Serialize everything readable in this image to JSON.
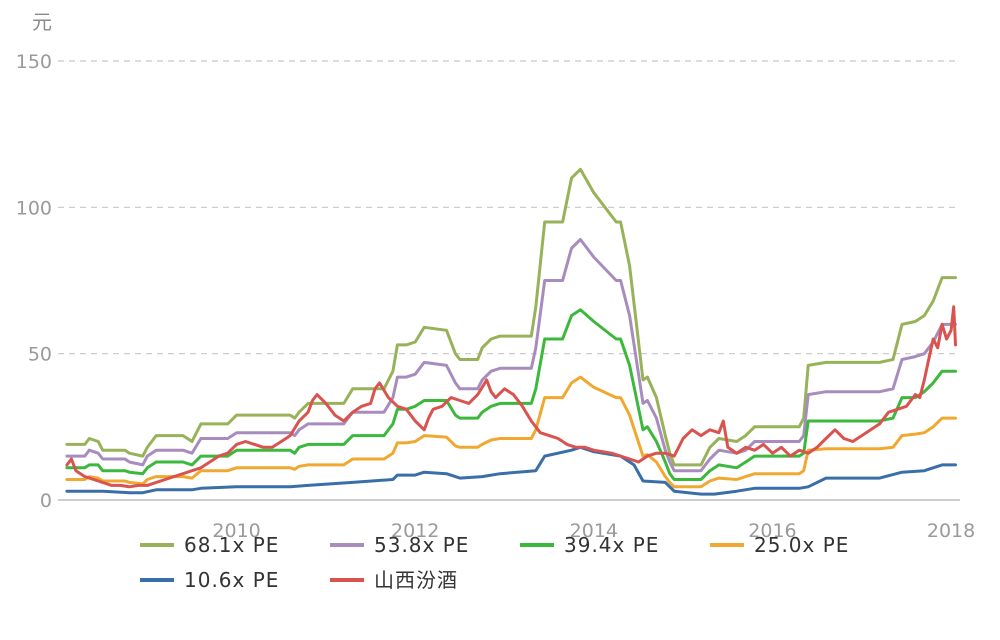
{
  "chart_data": {
    "type": "line",
    "title": "",
    "xlabel": "",
    "ylabel": "元",
    "xlim": [
      2008.0,
      2018.1
    ],
    "ylim": [
      0,
      150
    ],
    "yticks": [
      0,
      50,
      100,
      150
    ],
    "xticks": [
      2010,
      2012,
      2014,
      2016,
      2018
    ],
    "grid": "horizontal dashed",
    "legend_position": "bottom",
    "series": [
      {
        "name": "68.1x PE",
        "color": "#98b25a",
        "x": [
          2008.1,
          2008.3,
          2008.35,
          2008.45,
          2008.5,
          2008.75,
          2008.8,
          2008.95,
          2009.0,
          2009.1,
          2009.4,
          2009.5,
          2009.6,
          2009.9,
          2010.0,
          2010.6,
          2010.65,
          2010.7,
          2010.8,
          2011.2,
          2011.3,
          2011.65,
          2011.75,
          2011.8,
          2011.9,
          2012.0,
          2012.1,
          2012.35,
          2012.45,
          2012.5,
          2012.7,
          2012.75,
          2012.85,
          2012.95,
          2013.3,
          2013.35,
          2013.45,
          2013.55,
          2013.65,
          2013.75,
          2013.85,
          2014.0,
          2014.25,
          2014.3,
          2014.4,
          2014.55,
          2014.6,
          2014.7,
          2014.8,
          2014.85,
          2014.9,
          2015.2,
          2015.3,
          2015.4,
          2015.6,
          2015.7,
          2015.8,
          2015.9,
          2016.3,
          2016.35,
          2016.4,
          2016.6,
          2016.7,
          2017.2,
          2017.35,
          2017.45,
          2017.6,
          2017.7,
          2017.8,
          2017.9,
          2018.05
        ],
        "y": [
          19,
          19,
          21,
          20,
          17,
          17,
          16,
          15,
          18,
          22,
          22,
          20,
          26,
          26,
          29,
          29,
          28,
          30,
          33,
          33,
          38,
          38,
          44,
          53,
          53,
          54,
          59,
          58,
          50,
          48,
          48,
          52,
          55,
          56,
          56,
          66,
          95,
          95,
          95,
          110,
          113,
          105,
          95,
          95,
          80,
          41,
          42,
          35,
          22,
          16,
          12,
          12,
          18,
          21,
          20,
          22,
          25,
          25,
          25,
          28,
          46,
          47,
          47,
          47,
          48,
          60,
          61,
          63,
          68,
          76,
          76
        ]
      },
      {
        "name": "53.8x PE",
        "color": "#a88cbe",
        "x": [
          2008.1,
          2008.3,
          2008.35,
          2008.45,
          2008.5,
          2008.75,
          2008.8,
          2008.95,
          2009.0,
          2009.1,
          2009.4,
          2009.5,
          2009.6,
          2009.9,
          2010.0,
          2010.6,
          2010.65,
          2010.7,
          2010.8,
          2011.2,
          2011.3,
          2011.65,
          2011.75,
          2011.8,
          2011.9,
          2012.0,
          2012.1,
          2012.35,
          2012.45,
          2012.5,
          2012.7,
          2012.75,
          2012.85,
          2012.95,
          2013.3,
          2013.35,
          2013.45,
          2013.55,
          2013.65,
          2013.75,
          2013.85,
          2014.0,
          2014.25,
          2014.3,
          2014.4,
          2014.55,
          2014.6,
          2014.7,
          2014.8,
          2014.85,
          2014.9,
          2015.2,
          2015.3,
          2015.4,
          2015.6,
          2015.7,
          2015.8,
          2015.9,
          2016.3,
          2016.35,
          2016.4,
          2016.6,
          2016.7,
          2017.2,
          2017.35,
          2017.45,
          2017.6,
          2017.7,
          2017.8,
          2017.9,
          2018.05
        ],
        "y": [
          15,
          15,
          17,
          16,
          14,
          14,
          13,
          12,
          15,
          17,
          17,
          16,
          21,
          21,
          23,
          23,
          22,
          24,
          26,
          26,
          30,
          30,
          35,
          42,
          42,
          43,
          47,
          46,
          40,
          38,
          38,
          41,
          44,
          45,
          45,
          52,
          75,
          75,
          75,
          86,
          89,
          83,
          75,
          75,
          63,
          33,
          34,
          28,
          17,
          13,
          10,
          10,
          14,
          17,
          16,
          17,
          20,
          20,
          20,
          22,
          36,
          37,
          37,
          37,
          38,
          48,
          49,
          50,
          54,
          60,
          60
        ]
      },
      {
        "name": "39.4x PE",
        "color": "#3cb83c",
        "x": [
          2008.1,
          2008.3,
          2008.35,
          2008.45,
          2008.5,
          2008.75,
          2008.8,
          2008.95,
          2009.0,
          2009.1,
          2009.4,
          2009.5,
          2009.6,
          2009.9,
          2010.0,
          2010.6,
          2010.65,
          2010.7,
          2010.8,
          2011.2,
          2011.3,
          2011.65,
          2011.75,
          2011.8,
          2011.9,
          2012.0,
          2012.1,
          2012.35,
          2012.45,
          2012.5,
          2012.7,
          2012.75,
          2012.85,
          2012.95,
          2013.3,
          2013.35,
          2013.45,
          2013.55,
          2013.65,
          2013.75,
          2013.85,
          2014.0,
          2014.25,
          2014.3,
          2014.4,
          2014.55,
          2014.6,
          2014.7,
          2014.8,
          2014.85,
          2014.9,
          2015.2,
          2015.3,
          2015.4,
          2015.6,
          2015.7,
          2015.8,
          2015.9,
          2016.3,
          2016.35,
          2016.4,
          2016.6,
          2016.7,
          2017.2,
          2017.35,
          2017.45,
          2017.6,
          2017.7,
          2017.8,
          2017.9,
          2018.05
        ],
        "y": [
          11,
          11,
          12,
          12,
          10,
          10,
          9.5,
          9,
          11,
          13,
          13,
          12,
          15,
          15,
          17,
          17,
          16,
          18,
          19,
          19,
          22,
          22,
          26,
          31,
          31,
          32,
          34,
          34,
          29,
          28,
          28,
          30,
          32,
          33,
          33,
          38,
          55,
          55,
          55,
          63,
          65,
          61,
          55,
          55,
          46,
          24,
          25,
          20,
          13,
          9,
          7,
          7,
          10,
          12,
          11,
          13,
          15,
          15,
          15,
          16,
          27,
          27,
          27,
          27,
          28,
          35,
          35,
          37,
          40,
          44,
          44
        ]
      },
      {
        "name": "25.0x PE",
        "color": "#f0a830",
        "x": [
          2008.1,
          2008.3,
          2008.35,
          2008.45,
          2008.5,
          2008.75,
          2008.8,
          2008.95,
          2009.0,
          2009.1,
          2009.4,
          2009.5,
          2009.6,
          2009.9,
          2010.0,
          2010.6,
          2010.65,
          2010.7,
          2010.8,
          2011.2,
          2011.3,
          2011.65,
          2011.75,
          2011.8,
          2011.9,
          2012.0,
          2012.1,
          2012.35,
          2012.45,
          2012.5,
          2012.7,
          2012.75,
          2012.85,
          2012.95,
          2013.3,
          2013.35,
          2013.45,
          2013.55,
          2013.65,
          2013.75,
          2013.85,
          2014.0,
          2014.25,
          2014.3,
          2014.4,
          2014.55,
          2014.6,
          2014.7,
          2014.8,
          2014.85,
          2014.9,
          2015.2,
          2015.3,
          2015.4,
          2015.6,
          2015.7,
          2015.8,
          2015.9,
          2016.3,
          2016.35,
          2016.4,
          2016.6,
          2016.7,
          2017.2,
          2017.35,
          2017.45,
          2017.6,
          2017.7,
          2017.8,
          2017.9,
          2018.05
        ],
        "y": [
          7,
          7,
          8,
          7.5,
          6.5,
          6.5,
          6,
          5.5,
          7,
          8,
          8,
          7.5,
          10,
          10,
          11,
          11,
          10.5,
          11.5,
          12,
          12,
          14,
          14,
          16,
          19.5,
          19.5,
          20,
          22,
          21.5,
          18.5,
          18,
          18,
          19,
          20.5,
          21,
          21,
          24,
          35,
          35,
          35,
          40,
          42,
          38.5,
          35,
          35,
          29,
          15,
          15.5,
          13,
          8,
          6,
          4.5,
          4.5,
          6.5,
          7.5,
          7,
          8,
          9,
          9,
          9,
          10,
          17,
          17.5,
          17.5,
          17.5,
          18,
          22,
          22.5,
          23,
          25,
          28,
          28
        ]
      },
      {
        "name": "10.6x PE",
        "color": "#3a6ea8",
        "x": [
          2008.1,
          2008.3,
          2008.5,
          2008.8,
          2008.95,
          2009.1,
          2009.5,
          2009.6,
          2010.0,
          2010.6,
          2010.8,
          2011.3,
          2011.75,
          2011.8,
          2012.0,
          2012.1,
          2012.35,
          2012.5,
          2012.75,
          2012.95,
          2013.35,
          2013.45,
          2013.75,
          2013.85,
          2014.0,
          2014.3,
          2014.45,
          2014.55,
          2014.8,
          2014.9,
          2015.2,
          2015.35,
          2015.6,
          2015.8,
          2016.3,
          2016.4,
          2016.6,
          2017.2,
          2017.45,
          2017.7,
          2017.9,
          2018.05
        ],
        "y": [
          3,
          3,
          3,
          2.5,
          2.5,
          3.5,
          3.5,
          4,
          4.5,
          4.5,
          5,
          6,
          7,
          8.5,
          8.5,
          9.5,
          9,
          7.5,
          8,
          9,
          10,
          15,
          17,
          18,
          16.5,
          15,
          12,
          6.5,
          6,
          3,
          2,
          2,
          3,
          4,
          4,
          4.5,
          7.5,
          7.5,
          9.5,
          10,
          12,
          12
        ]
      },
      {
        "name": "山西汾酒",
        "color": "#d9534f",
        "x": [
          2008.1,
          2008.15,
          2008.2,
          2008.3,
          2008.4,
          2008.5,
          2008.6,
          2008.7,
          2008.8,
          2008.9,
          2009.0,
          2009.1,
          2009.2,
          2009.3,
          2009.4,
          2009.5,
          2009.6,
          2009.7,
          2009.8,
          2009.9,
          2010.0,
          2010.1,
          2010.2,
          2010.3,
          2010.4,
          2010.5,
          2010.6,
          2010.7,
          2010.8,
          2010.85,
          2010.9,
          2011.0,
          2011.1,
          2011.2,
          2011.3,
          2011.4,
          2011.5,
          2011.55,
          2011.6,
          2011.7,
          2011.8,
          2011.9,
          2012.0,
          2012.1,
          2012.15,
          2012.2,
          2012.3,
          2012.4,
          2012.5,
          2012.6,
          2012.7,
          2012.8,
          2012.85,
          2012.9,
          2013.0,
          2013.1,
          2013.2,
          2013.3,
          2013.4,
          2013.5,
          2013.6,
          2013.7,
          2013.8,
          2013.9,
          2014.0,
          2014.2,
          2014.4,
          2014.5,
          2014.6,
          2014.7,
          2014.8,
          2014.9,
          2015.0,
          2015.1,
          2015.2,
          2015.3,
          2015.4,
          2015.45,
          2015.5,
          2015.6,
          2015.7,
          2015.8,
          2015.9,
          2016.0,
          2016.1,
          2016.2,
          2016.3,
          2016.4,
          2016.5,
          2016.6,
          2016.7,
          2016.8,
          2016.9,
          2017.0,
          2017.1,
          2017.2,
          2017.3,
          2017.4,
          2017.5,
          2017.6,
          2017.65,
          2017.7,
          2017.75,
          2017.8,
          2017.85,
          2017.9,
          2017.95,
          2018.0,
          2018.03,
          2018.05
        ],
        "y": [
          12,
          14,
          10,
          8,
          7,
          6,
          5,
          5,
          4.5,
          5,
          5,
          6,
          7,
          8,
          9,
          10,
          11,
          13,
          15,
          16,
          19,
          20,
          19,
          18,
          18,
          20,
          22,
          27,
          30,
          34,
          36,
          33,
          29,
          27,
          30,
          32,
          33,
          38,
          40,
          35,
          32,
          31,
          27,
          24,
          28,
          31,
          32,
          35,
          34,
          33,
          36,
          41,
          37,
          35,
          38,
          36,
          32,
          27,
          23,
          22,
          21,
          19,
          18,
          18,
          17,
          16,
          14,
          13,
          15,
          16,
          16,
          15,
          21,
          24,
          22,
          24,
          23,
          27,
          18,
          16,
          18,
          17,
          19,
          16,
          18,
          15,
          17,
          16,
          18,
          21,
          24,
          21,
          20,
          22,
          24,
          26,
          30,
          31,
          32,
          36,
          35,
          41,
          48,
          55,
          52,
          60,
          55,
          58,
          66,
          53
        ]
      }
    ]
  }
}
